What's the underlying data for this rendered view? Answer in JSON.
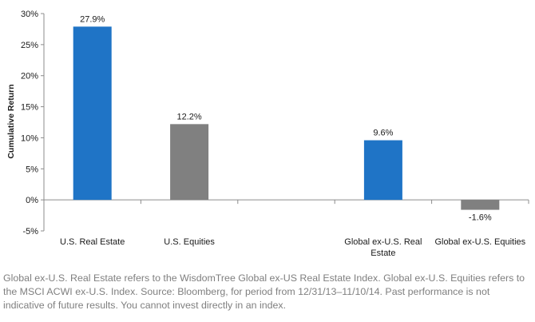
{
  "chart_data": {
    "type": "bar",
    "categories": [
      [
        "U.S. Real Estate"
      ],
      [
        "U.S. Equities"
      ],
      [
        ""
      ],
      [
        "Global ex-U.S. Real",
        "Estate"
      ],
      [
        "Global ex-U.S. Equities"
      ]
    ],
    "values": [
      27.9,
      12.2,
      null,
      9.6,
      -1.6
    ],
    "value_labels": [
      "27.9%",
      "12.2%",
      "",
      "9.6%",
      "-1.6%"
    ],
    "bar_colors": [
      "#1f74c6",
      "#808080",
      "#ffffff",
      "#1f74c6",
      "#808080"
    ],
    "ylabel": "Cumulative Return",
    "ylim": [
      -5,
      30
    ],
    "yticks": [
      -5,
      0,
      5,
      10,
      15,
      20,
      25,
      30
    ],
    "ytick_labels": [
      "-5%",
      "0%",
      "5%",
      "10%",
      "15%",
      "20%",
      "25%",
      "30%"
    ],
    "grid": false,
    "legend": "none"
  },
  "footnote": "Global ex-U.S. Real Estate refers to the WisdomTree Global ex-US Real Estate Index. Global ex-U.S. Equities refers to the MSCI ACWI ex-U.S. Index. Source: Bloomberg, for period from 12/31/13–11/10/14. Past performance is not indicative of future results. You cannot invest directly in an index."
}
